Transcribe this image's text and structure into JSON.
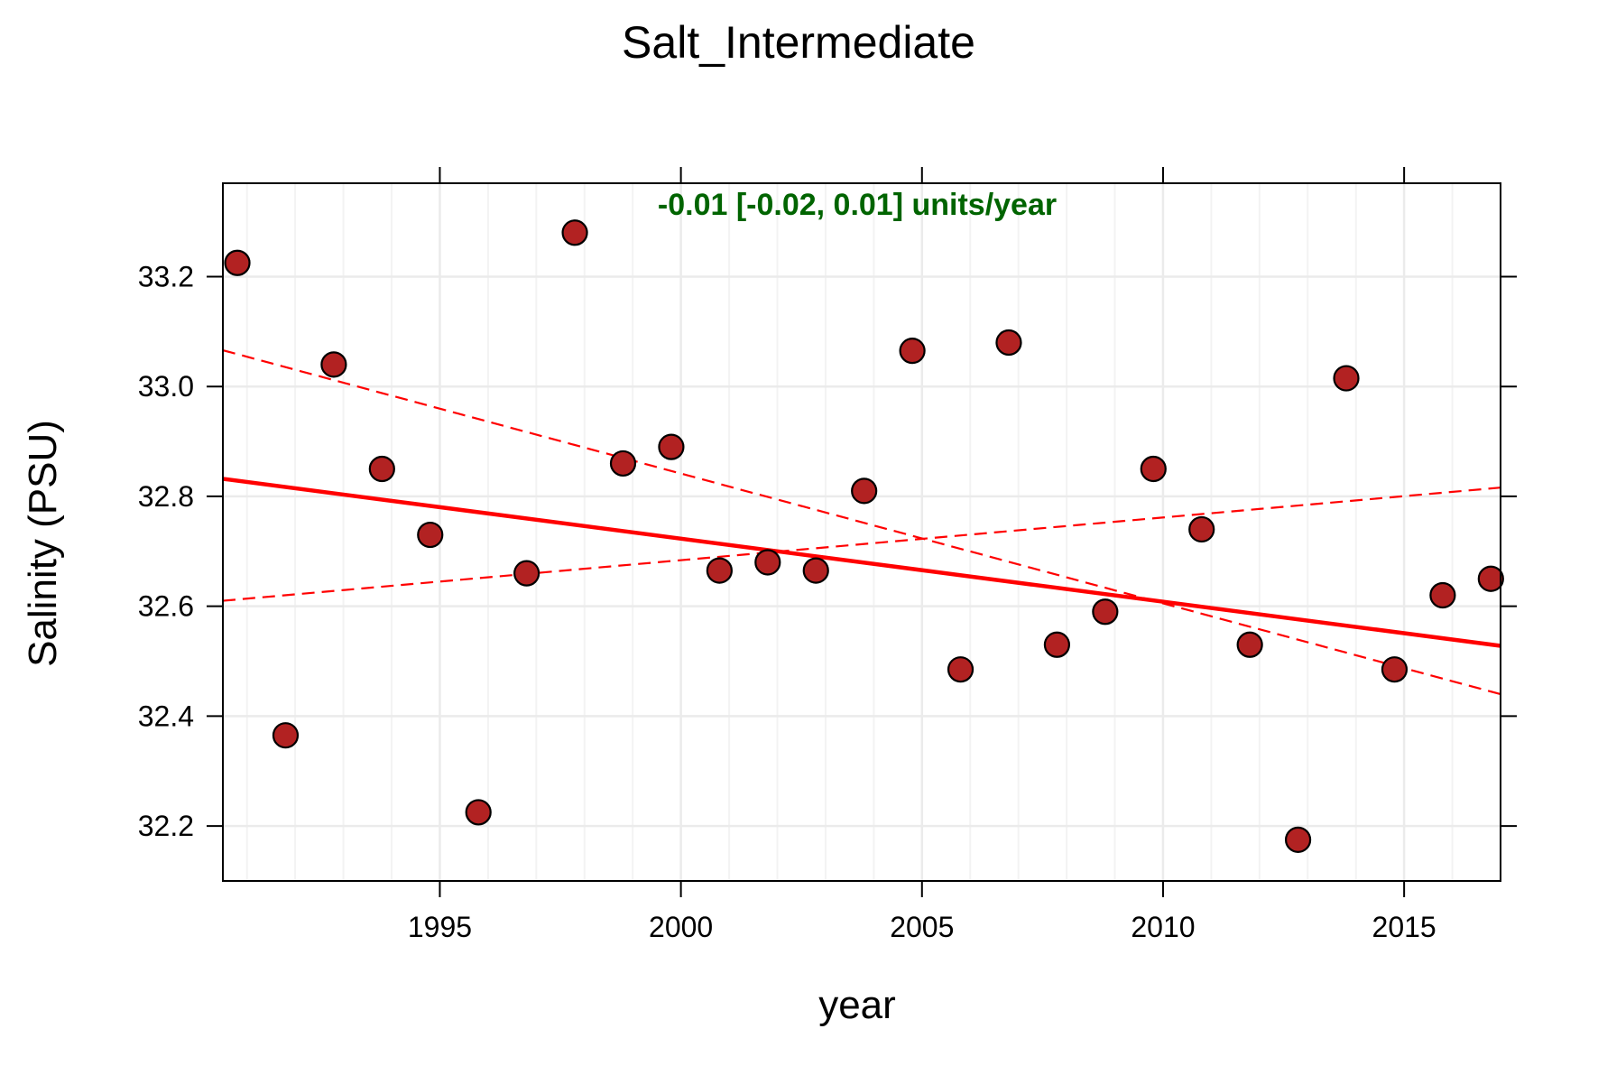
{
  "chart_data": {
    "type": "scatter",
    "title": "Salt_Intermediate",
    "xlabel": "year",
    "ylabel": "Salinity (PSU)",
    "xlim": [
      1990.5,
      2017
    ],
    "ylim": [
      32.1,
      33.37
    ],
    "x_ticks": [
      {
        "value": 1995,
        "label": "1995"
      },
      {
        "value": 2000,
        "label": "2000"
      },
      {
        "value": 2005,
        "label": "2005"
      },
      {
        "value": 2010,
        "label": "2010"
      },
      {
        "value": 2015,
        "label": "2015"
      }
    ],
    "y_ticks": [
      {
        "value": 32.2,
        "label": "32.2"
      },
      {
        "value": 32.4,
        "label": "32.4"
      },
      {
        "value": 32.6,
        "label": "32.6"
      },
      {
        "value": 32.8,
        "label": "32.8"
      },
      {
        "value": 33.0,
        "label": "33.0"
      },
      {
        "value": 33.2,
        "label": "33.2"
      }
    ],
    "grid": true,
    "annotation": "-0.01 [-0.02, 0.01] units/year",
    "points": [
      {
        "x": 1990.8,
        "y": 33.225
      },
      {
        "x": 1991.8,
        "y": 32.365
      },
      {
        "x": 1992.8,
        "y": 33.04
      },
      {
        "x": 1993.8,
        "y": 32.85
      },
      {
        "x": 1994.8,
        "y": 32.73
      },
      {
        "x": 1995.8,
        "y": 32.225
      },
      {
        "x": 1996.8,
        "y": 32.66
      },
      {
        "x": 1997.8,
        "y": 33.28
      },
      {
        "x": 1998.8,
        "y": 32.86
      },
      {
        "x": 1999.8,
        "y": 32.89
      },
      {
        "x": 2000.8,
        "y": 32.665
      },
      {
        "x": 2001.8,
        "y": 32.68
      },
      {
        "x": 2002.8,
        "y": 32.665
      },
      {
        "x": 2003.8,
        "y": 32.81
      },
      {
        "x": 2004.8,
        "y": 33.065
      },
      {
        "x": 2005.8,
        "y": 32.485
      },
      {
        "x": 2006.8,
        "y": 33.08
      },
      {
        "x": 2007.8,
        "y": 32.53
      },
      {
        "x": 2008.8,
        "y": 32.59
      },
      {
        "x": 2009.8,
        "y": 32.85
      },
      {
        "x": 2010.8,
        "y": 32.74
      },
      {
        "x": 2011.8,
        "y": 32.53
      },
      {
        "x": 2012.8,
        "y": 32.175
      },
      {
        "x": 2013.8,
        "y": 33.015
      },
      {
        "x": 2014.8,
        "y": 32.485
      },
      {
        "x": 2015.8,
        "y": 32.62
      },
      {
        "x": 2016.8,
        "y": 32.65
      }
    ],
    "lines": [
      {
        "style": "solid",
        "x": [
          1990.5,
          2017
        ],
        "y": [
          32.832,
          32.528
        ]
      },
      {
        "style": "dashed",
        "x": [
          1990.5,
          2017
        ],
        "y": [
          33.066,
          32.44
        ]
      },
      {
        "style": "dashed",
        "x": [
          1990.5,
          2017
        ],
        "y": [
          32.61,
          32.816
        ]
      }
    ],
    "colors": {
      "point_fill": "#b22222",
      "point_stroke": "#000000",
      "trend_line": "#ff0000",
      "annotation": "#006400",
      "grid": "#ebebeb",
      "grid_minor": "#f3f3f3"
    }
  }
}
